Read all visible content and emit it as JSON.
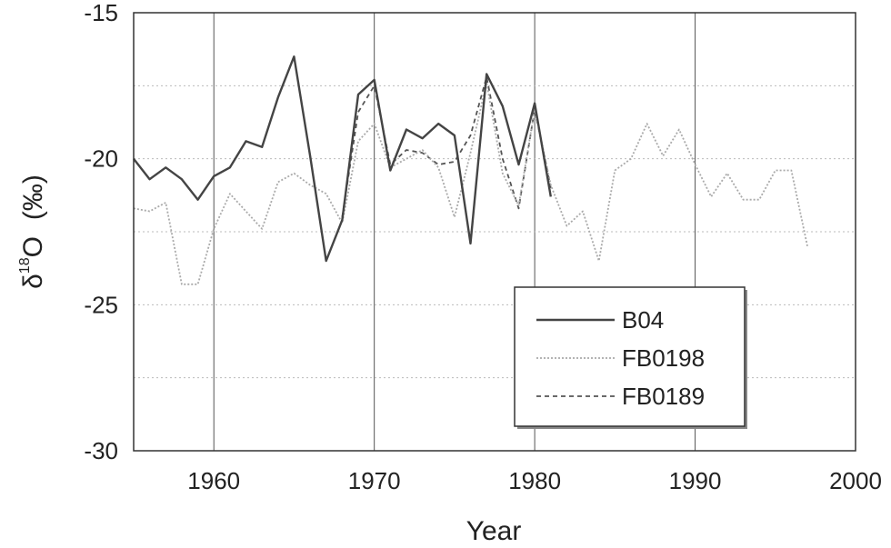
{
  "chart_data": {
    "type": "line",
    "xlabel": "Year",
    "ylabel_main": "δ",
    "ylabel_sup": "18",
    "ylabel_tail": "O",
    "ylabel_unit": "(‰)",
    "xlim": [
      1955,
      2000
    ],
    "ylim": [
      -30,
      -15
    ],
    "xticks": [
      1960,
      1970,
      1980,
      1990,
      2000
    ],
    "yticks": [
      -30,
      -25,
      -20,
      -15
    ],
    "grid": true,
    "legend_position": "bottom-right",
    "series": [
      {
        "name": "B04",
        "style": "solid",
        "color": "#444444",
        "x": [
          1955,
          1956,
          1957,
          1958,
          1959,
          1960,
          1961,
          1962,
          1963,
          1964,
          1965,
          1966,
          1967,
          1968,
          1969,
          1970,
          1971,
          1972,
          1973,
          1974,
          1975,
          1976,
          1977,
          1978,
          1979,
          1980,
          1981
        ],
        "y": [
          -20.0,
          -20.7,
          -20.3,
          -20.7,
          -21.4,
          -20.6,
          -20.3,
          -19.4,
          -19.6,
          -17.9,
          -16.5,
          -19.9,
          -23.5,
          -22.1,
          -17.8,
          -17.3,
          -20.4,
          -19.0,
          -19.3,
          -18.8,
          -19.2,
          -22.9,
          -17.1,
          -18.2,
          -20.2,
          -18.1,
          -21.3
        ]
      },
      {
        "name": "FB0198",
        "style": "dotted",
        "color": "#aaaaaa",
        "x": [
          1955,
          1956,
          1957,
          1958,
          1959,
          1960,
          1961,
          1962,
          1963,
          1964,
          1965,
          1966,
          1967,
          1968,
          1969,
          1970,
          1971,
          1972,
          1973,
          1974,
          1975,
          1976,
          1977,
          1978,
          1979,
          1980,
          1981,
          1982,
          1983,
          1984,
          1985,
          1986,
          1987,
          1988,
          1989,
          1990,
          1991,
          1992,
          1993,
          1994,
          1995,
          1996,
          1997
        ],
        "y": [
          -21.7,
          -21.8,
          -21.5,
          -24.3,
          -24.3,
          -22.4,
          -21.2,
          -21.8,
          -22.4,
          -20.8,
          -20.5,
          -20.9,
          -21.2,
          -22.2,
          -19.4,
          -18.8,
          -20.3,
          -20.0,
          -19.7,
          -20.3,
          -22.0,
          -19.8,
          -17.4,
          -20.5,
          -21.6,
          -18.3,
          -20.9,
          -22.3,
          -21.8,
          -23.5,
          -20.4,
          -20.0,
          -18.8,
          -19.9,
          -19.0,
          -20.2,
          -21.3,
          -20.5,
          -21.4,
          -21.4,
          -20.4,
          -20.4,
          -23.0
        ]
      },
      {
        "name": "FB0189",
        "style": "dashed",
        "color": "#555555",
        "x": [
          1968,
          1969,
          1970,
          1971,
          1972,
          1973,
          1974,
          1975,
          1976,
          1977,
          1978,
          1979,
          1980,
          1981
        ],
        "y": [
          -22.0,
          -18.4,
          -17.5,
          -20.2,
          -19.7,
          -19.8,
          -20.2,
          -20.1,
          -19.2,
          -17.2,
          -20.0,
          -21.7,
          -18.3,
          -21.0
        ]
      }
    ]
  }
}
